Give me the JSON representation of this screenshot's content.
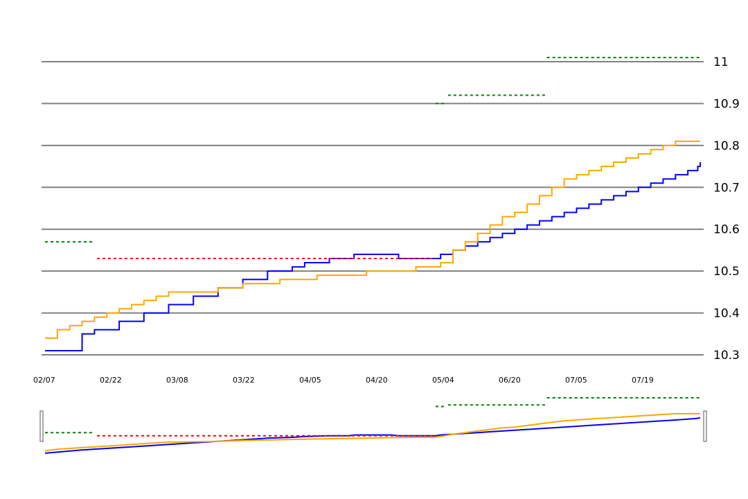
{
  "chart_data": {
    "type": "line",
    "title": "",
    "xlabel": "",
    "ylabel": "",
    "ylim": [
      10.3,
      11.0
    ],
    "y_axis_position": "right",
    "grid": "horizontal",
    "x_tick_labels": [
      "02/07",
      "02/22",
      "03/08",
      "03/22",
      "04/05",
      "04/20",
      "05/04",
      "06/20",
      "07/05",
      "07/19"
    ],
    "y_tick_labels": [
      "10.3",
      "10.4",
      "10.5",
      "10.6",
      "10.7",
      "10.8",
      "10.9",
      "11"
    ],
    "y_ticks": [
      10.3,
      10.4,
      10.5,
      10.6,
      10.7,
      10.8,
      10.9,
      11.0
    ],
    "has_range_navigator": true,
    "series": [
      {
        "color": "#0000ff",
        "style": "step",
        "points": [
          [
            0,
            10.31
          ],
          [
            15,
            10.35
          ],
          [
            20,
            10.36
          ],
          [
            30,
            10.38
          ],
          [
            40,
            10.4
          ],
          [
            50,
            10.42
          ],
          [
            60,
            10.44
          ],
          [
            70,
            10.46
          ],
          [
            80,
            10.48
          ],
          [
            90,
            10.5
          ],
          [
            100,
            10.51
          ],
          [
            105,
            10.52
          ],
          [
            115,
            10.53
          ],
          [
            123,
            10.53
          ],
          [
            125,
            10.54
          ],
          [
            140,
            10.54
          ],
          [
            143,
            10.53
          ],
          [
            158,
            10.53
          ],
          [
            160,
            10.54
          ],
          [
            165,
            10.55
          ],
          [
            170,
            10.56
          ],
          [
            175,
            10.57
          ],
          [
            180,
            10.58
          ],
          [
            185,
            10.59
          ],
          [
            190,
            10.6
          ],
          [
            195,
            10.61
          ],
          [
            200,
            10.62
          ],
          [
            205,
            10.63
          ],
          [
            210,
            10.64
          ],
          [
            215,
            10.65
          ],
          [
            220,
            10.66
          ],
          [
            225,
            10.67
          ],
          [
            230,
            10.68
          ],
          [
            235,
            10.69
          ],
          [
            240,
            10.7
          ],
          [
            245,
            10.71
          ],
          [
            250,
            10.72
          ],
          [
            255,
            10.73
          ],
          [
            260,
            10.74
          ],
          [
            264,
            10.75
          ],
          [
            265,
            10.76
          ]
        ]
      },
      {
        "color": "#ffa500",
        "style": "step",
        "points": [
          [
            0,
            10.34
          ],
          [
            5,
            10.36
          ],
          [
            10,
            10.37
          ],
          [
            15,
            10.38
          ],
          [
            20,
            10.39
          ],
          [
            25,
            10.4
          ],
          [
            30,
            10.41
          ],
          [
            35,
            10.42
          ],
          [
            40,
            10.43
          ],
          [
            45,
            10.44
          ],
          [
            50,
            10.45
          ],
          [
            55,
            10.45
          ],
          [
            70,
            10.46
          ],
          [
            80,
            10.47
          ],
          [
            95,
            10.48
          ],
          [
            110,
            10.49
          ],
          [
            130,
            10.5
          ],
          [
            150,
            10.51
          ],
          [
            157,
            10.51
          ],
          [
            160,
            10.52
          ],
          [
            165,
            10.55
          ],
          [
            170,
            10.57
          ],
          [
            175,
            10.59
          ],
          [
            180,
            10.61
          ],
          [
            185,
            10.63
          ],
          [
            190,
            10.64
          ],
          [
            195,
            10.66
          ],
          [
            200,
            10.68
          ],
          [
            205,
            10.7
          ],
          [
            210,
            10.72
          ],
          [
            215,
            10.73
          ],
          [
            220,
            10.74
          ],
          [
            225,
            10.75
          ],
          [
            230,
            10.76
          ],
          [
            235,
            10.77
          ],
          [
            240,
            10.78
          ],
          [
            245,
            10.79
          ],
          [
            250,
            10.8
          ],
          [
            255,
            10.81
          ],
          [
            265,
            10.81
          ]
        ]
      }
    ],
    "reference_lines": [
      {
        "color": "#008000",
        "style": "dotted",
        "y": 10.57,
        "x": [
          0,
          20
        ]
      },
      {
        "color": "#ff0000",
        "style": "dotted",
        "y": 10.53,
        "x": [
          21,
          158
        ]
      },
      {
        "color": "#008000",
        "style": "dotted",
        "y": 10.9,
        "x": [
          158,
          162
        ]
      },
      {
        "color": "#008000",
        "style": "dotted",
        "y": 10.92,
        "x": [
          163,
          203
        ]
      },
      {
        "color": "#008000",
        "style": "dotted",
        "y": 11.01,
        "x": [
          203,
          265
        ]
      }
    ]
  }
}
